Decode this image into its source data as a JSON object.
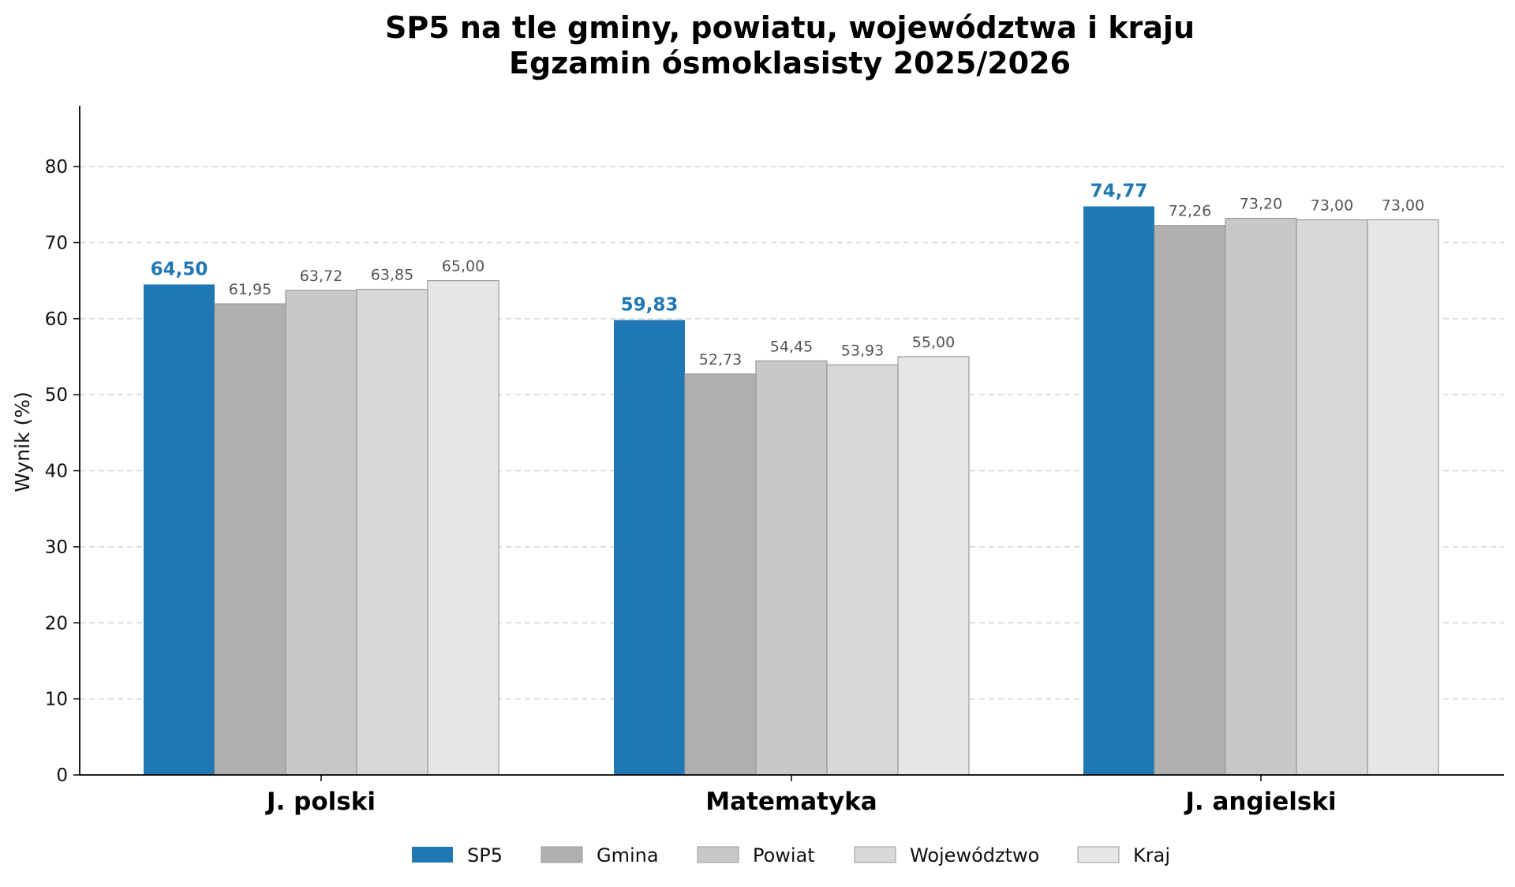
{
  "chart_data": {
    "type": "bar",
    "title": "SP5 na tle gminy, powiatu, województwa i kraju",
    "subtitle": "Egzamin ósmoklasisty 2025/2026",
    "xlabel": "",
    "ylabel": "Wynik (%)",
    "ylim": [
      0,
      88
    ],
    "yticks": [
      0,
      10,
      20,
      30,
      40,
      50,
      60,
      70,
      80
    ],
    "grid": "horizontal dashed",
    "legend_position": "bottom-center",
    "categories": [
      "J. polski",
      "Matematyka",
      "J. angielski"
    ],
    "series": [
      {
        "name": "SP5",
        "color": "#1f77b4",
        "values": [
          64.5,
          59.83,
          74.77
        ],
        "labels": [
          "64,50",
          "59,83",
          "74,77"
        ]
      },
      {
        "name": "Gmina",
        "color": "#b0b0b0",
        "values": [
          61.95,
          52.73,
          72.26
        ],
        "labels": [
          "61,95",
          "52,73",
          "72,26"
        ]
      },
      {
        "name": "Powiat",
        "color": "#c8c8c8",
        "values": [
          63.72,
          54.45,
          73.2
        ],
        "labels": [
          "63,72",
          "54,45",
          "73,20"
        ]
      },
      {
        "name": "Województwo",
        "color": "#d8d8d8",
        "values": [
          63.85,
          53.93,
          73.0
        ],
        "labels": [
          "63,85",
          "53,93",
          "73,00"
        ]
      },
      {
        "name": "Kraj",
        "color": "#e6e6e6",
        "values": [
          65.0,
          55.0,
          73.0
        ],
        "labels": [
          "65,00",
          "55,00",
          "73,00"
        ]
      }
    ]
  }
}
